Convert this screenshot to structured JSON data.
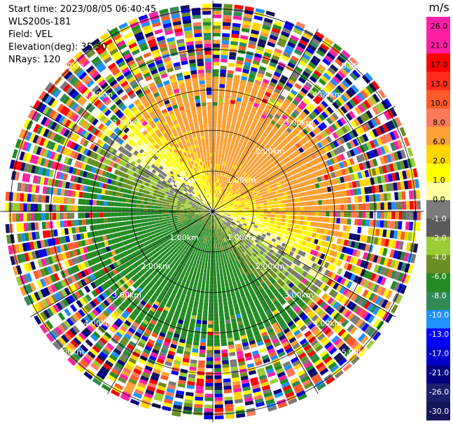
{
  "header": {
    "start_time": "Start time: 2023/08/05 06:40:45",
    "instrument": "WLS200s-181",
    "field": "Field: VEL",
    "elevation": "Elevation(deg): 35.30",
    "nrays": "NRays: 120"
  },
  "chart_data": {
    "type": "ppi-heatmap",
    "field": "VEL",
    "units": "m/s",
    "n_rays": 120,
    "elevation_deg": 35.3,
    "range_ring_labels": [
      "1.00km",
      "2.00km",
      "3.00km",
      "4.00km",
      "5.00km"
    ],
    "range_rings_km": [
      1,
      2,
      3,
      4,
      5
    ],
    "max_range_km": 5.2,
    "colorbar": {
      "title": "m/s",
      "ticks": [
        "26.0",
        "21.0",
        "17.0",
        "13.0",
        "10.0",
        "8.0",
        "6.0",
        "2.0",
        "1.0",
        "0.0",
        "-1.0",
        "-2.0",
        "-4.0",
        "-6.0",
        "-8.0",
        "-10.0",
        "-13.0",
        "-17.0",
        "-21.0",
        "-26.0",
        "-30.0"
      ],
      "colors": [
        "#ff1fa5",
        "#ff1fa5",
        "#ff0000",
        "#ff2d1a",
        "#ff5a2a",
        "#ff7a5a",
        "#ffa033",
        "#ffd400",
        "#ffff00",
        "#ffffa0",
        "#7a7a7a",
        "#5a5a5a",
        "#9ccc33",
        "#6b8e23",
        "#228b22",
        "#2e8b57",
        "#1e90ff",
        "#0000ff",
        "#0000cd",
        "#000080",
        "#1e1e6e",
        "#14145a"
      ]
    },
    "pattern_notes": "Near-range positive (yellow/orange) velocities to the north-east, negative (green) to south-west; outer rings noisy multicolor."
  }
}
